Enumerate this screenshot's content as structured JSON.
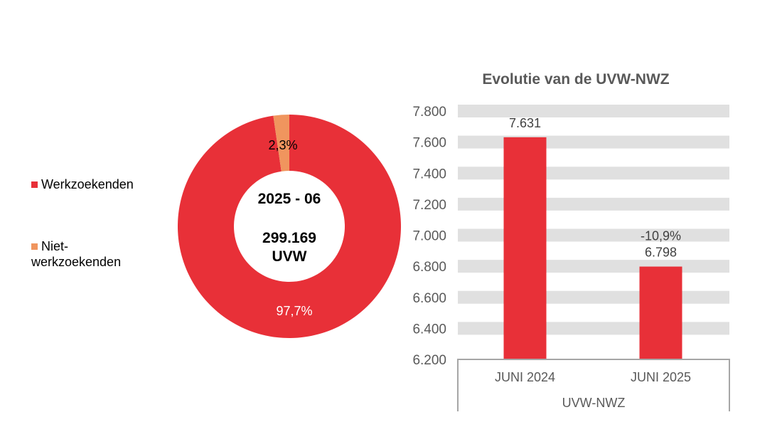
{
  "colors": {
    "werkzoekenden": "#e83038",
    "niet_werkzoekenden": "#f0955e",
    "bar": "#e83038",
    "band": "#e0e0e0",
    "axis_text": "#595959"
  },
  "chart_data": [
    {
      "type": "pie",
      "variant": "donut",
      "center_label": {
        "period": "2025 - 06",
        "total": "299.169",
        "unit": "UVW"
      },
      "legend": {
        "position": "left",
        "entries": [
          "Werkzoekenden",
          "Niet-werkzoekenden"
        ]
      },
      "legend_lines": [
        [
          "Werkzoekenden"
        ],
        [
          "Niet-",
          "werkzoekenden"
        ]
      ],
      "slices": [
        {
          "label": "Werkzoekenden",
          "value": 97.7,
          "data_label": "97,7%"
        },
        {
          "label": "Niet-werkzoekenden",
          "value": 2.3,
          "data_label": "2,3%"
        }
      ]
    },
    {
      "type": "bar",
      "title": "Evolutie van de UVW-NWZ",
      "categories": [
        "JUNI 2024",
        "JUNI 2025"
      ],
      "group_label": "UVW-NWZ",
      "values": [
        7631,
        6798
      ],
      "data_labels": [
        "7.631",
        "6.798"
      ],
      "change_label": "-10,9%",
      "ylim": [
        6200,
        7800
      ],
      "yticks": [
        6200,
        6400,
        6600,
        6800,
        7000,
        7200,
        7400,
        7600,
        7800
      ],
      "ytick_labels": [
        "6.200",
        "6.400",
        "6.600",
        "6.800",
        "7.000",
        "7.200",
        "7.400",
        "7.600",
        "7.800"
      ],
      "grid": "banded"
    }
  ]
}
